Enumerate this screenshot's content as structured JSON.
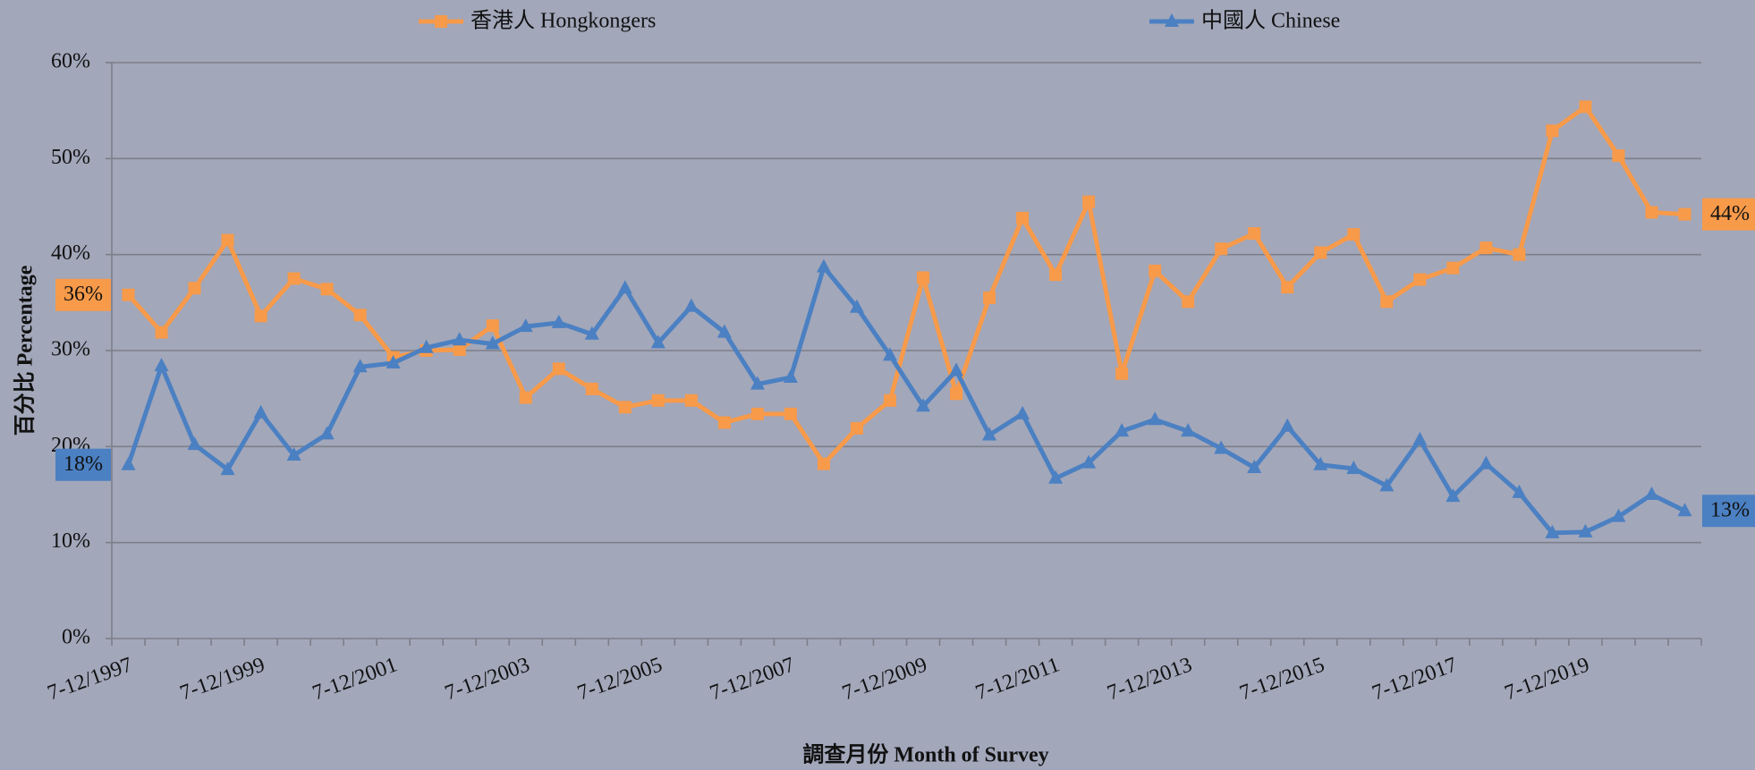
{
  "chart_data": {
    "type": "line",
    "x_label": "調查月份 Month of Survey",
    "y_label": "百分比 Percentage",
    "categories": [
      "7-12/1997",
      null,
      null,
      null,
      "7-12/1999",
      null,
      null,
      null,
      "7-12/2001",
      null,
      null,
      null,
      "7-12/2003",
      null,
      null,
      null,
      "7-12/2005",
      null,
      null,
      null,
      "7-12/2007",
      null,
      null,
      null,
      "7-12/2009",
      null,
      null,
      null,
      "7-12/2011",
      null,
      null,
      null,
      "7-12/2013",
      null,
      null,
      null,
      "7-12/2015",
      null,
      null,
      null,
      "7-12/2017",
      null,
      null,
      null,
      "7-12/2019",
      null,
      null,
      null
    ],
    "series": [
      {
        "name": "香港人 Hongkongers",
        "color": "#f79a4a",
        "marker": "square",
        "values": [
          35.8,
          31.9,
          36.5,
          41.5,
          33.6,
          37.5,
          36.4,
          33.7,
          29.3,
          30.0,
          30.1,
          32.6,
          25.1,
          28.1,
          26.0,
          24.1,
          24.8,
          24.8,
          22.5,
          23.4,
          23.4,
          18.2,
          21.9,
          24.8,
          37.6,
          25.5,
          35.5,
          43.8,
          37.9,
          45.5,
          27.6,
          38.3,
          35.1,
          40.6,
          42.2,
          36.6,
          40.2,
          42.1,
          35.1,
          37.4,
          38.6,
          40.7,
          40.0,
          52.9,
          55.4,
          50.3,
          44.4,
          44.2
        ],
        "value_labels": [
          "36%",
          null,
          null,
          null,
          null,
          null,
          null,
          null,
          null,
          null,
          null,
          null,
          null,
          null,
          null,
          null,
          null,
          null,
          null,
          null,
          null,
          null,
          null,
          null,
          null,
          null,
          null,
          null,
          null,
          null,
          null,
          null,
          null,
          null,
          null,
          null,
          null,
          null,
          null,
          null,
          null,
          null,
          null,
          null,
          null,
          null,
          null,
          "44%"
        ]
      },
      {
        "name": "中國人 Chinese",
        "color": "#4b80c2",
        "marker": "triangle",
        "values": [
          18.1,
          28.4,
          20.2,
          17.6,
          23.5,
          19.1,
          21.3,
          28.3,
          28.7,
          30.3,
          31.1,
          30.7,
          32.5,
          32.9,
          31.7,
          36.5,
          30.8,
          34.6,
          31.9,
          26.5,
          27.2,
          38.7,
          34.5,
          29.5,
          24.2,
          27.9,
          21.2,
          23.4,
          16.7,
          18.3,
          21.6,
          22.8,
          21.6,
          19.8,
          17.8,
          22.1,
          18.1,
          17.7,
          15.9,
          20.7,
          14.8,
          18.2,
          15.2,
          11.0,
          11.1,
          12.7,
          15.0,
          13.3
        ],
        "value_labels": [
          "18%",
          null,
          null,
          null,
          null,
          null,
          null,
          null,
          null,
          null,
          null,
          null,
          null,
          null,
          null,
          null,
          null,
          null,
          null,
          null,
          null,
          null,
          null,
          null,
          null,
          null,
          null,
          null,
          null,
          null,
          null,
          null,
          null,
          null,
          null,
          null,
          null,
          null,
          null,
          null,
          null,
          null,
          null,
          null,
          null,
          null,
          null,
          "13%"
        ]
      }
    ],
    "ylim": [
      0,
      60
    ],
    "yticks": [
      {
        "value": 0,
        "label": "0%"
      },
      {
        "value": 10,
        "label": "10%"
      },
      {
        "value": 20,
        "label": "20%"
      },
      {
        "value": 30,
        "label": "30%"
      },
      {
        "value": 40,
        "label": "40%"
      },
      {
        "value": 50,
        "label": "50%"
      },
      {
        "value": 60,
        "label": "60%"
      }
    ],
    "grid": true,
    "legend": "top"
  }
}
